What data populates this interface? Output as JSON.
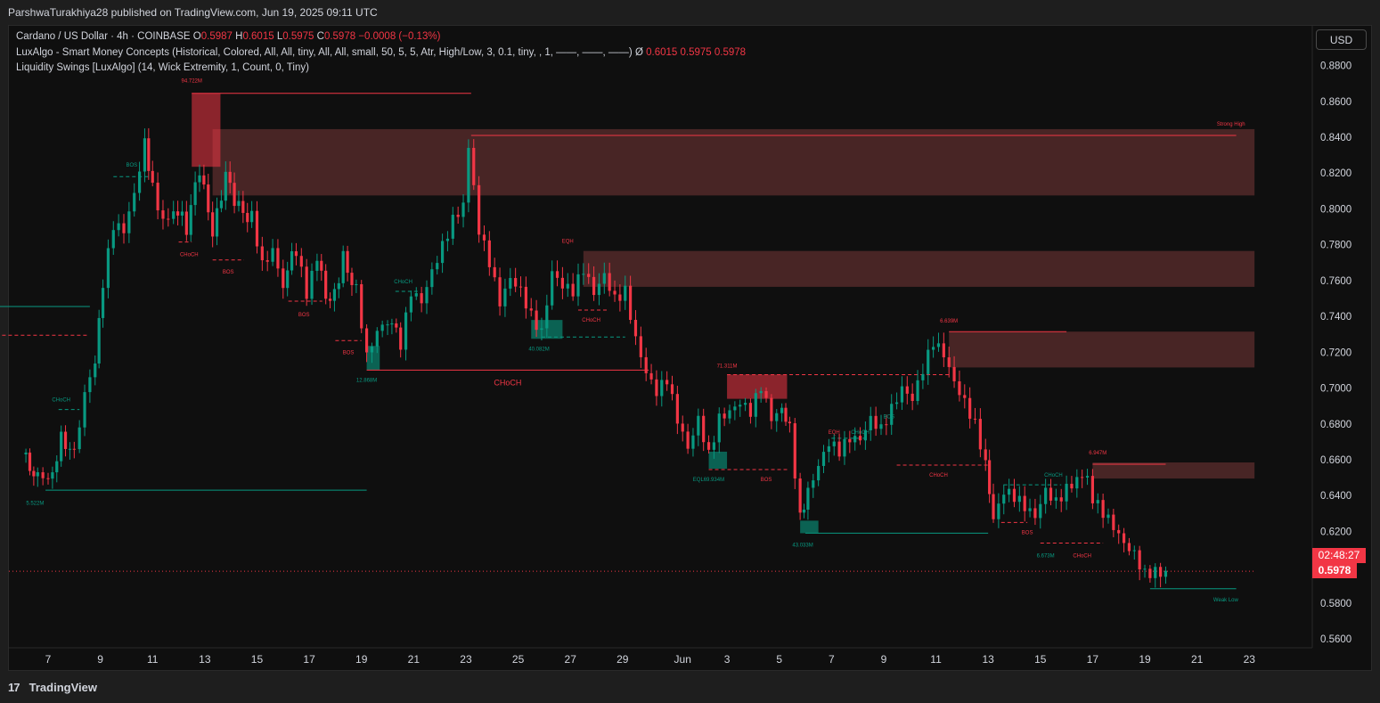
{
  "header": {
    "publisher_line": "ParshwaTurakhiya28 published on TradingView.com, Jun 19, 2025 09:11 UTC"
  },
  "legend": {
    "symbol": "Cardano / US Dollar · 4h · COINBASE",
    "o_label": "O",
    "o_value": "0.5987",
    "h_label": "H",
    "h_value": "0.6015",
    "l_label": "L",
    "l_value": "0.5975",
    "c_label": "C",
    "c_value": "0.5978",
    "change": "−0.0008 (−0.13%)",
    "indicator1": "LuxAlgo - Smart Money Concepts (Historical, Colored, All, All, tiny, All, All, small, 50, 5, 5, Atr, High/Low, 3, 0.1, tiny, , 1, ——, ——, ——)  Ø",
    "indicator1_values": "0.6015  0.5975  0.5978",
    "indicator2": "Liquidity Swings [LuxAlgo] (14, Wick Extremity, 1, Count, 0, Tiny)"
  },
  "currency_button": "USD",
  "price_label": {
    "countdown": "02:48:27",
    "last": "0.5978"
  },
  "footer": {
    "brand": "TradingView",
    "brand_mark": "17"
  },
  "colors": {
    "bull": "#089981",
    "bear": "#f23645",
    "zone": "#5c2e2e"
  },
  "chart_data": {
    "type": "candlestick",
    "title": "Cardano / US Dollar · 4h · COINBASE",
    "ylim": [
      0.55,
      0.895
    ],
    "y_ticks": [
      "0.8800",
      "0.8600",
      "0.8400",
      "0.8200",
      "0.8000",
      "0.7800",
      "0.7600",
      "0.7400",
      "0.7200",
      "0.7000",
      "0.6800",
      "0.6600",
      "0.6400",
      "0.6200",
      "0.6000",
      "0.5800",
      "0.5600"
    ],
    "x_ticks": [
      {
        "label": "7",
        "t": 7
      },
      {
        "label": "9",
        "t": 9
      },
      {
        "label": "11",
        "t": 11
      },
      {
        "label": "13",
        "t": 13
      },
      {
        "label": "15",
        "t": 15
      },
      {
        "label": "17",
        "t": 17
      },
      {
        "label": "19",
        "t": 19
      },
      {
        "label": "21",
        "t": 21
      },
      {
        "label": "23",
        "t": 23
      },
      {
        "label": "25",
        "t": 25
      },
      {
        "label": "27",
        "t": 27
      },
      {
        "label": "29",
        "t": 29
      },
      {
        "label": "Jun",
        "t": 31.3
      },
      {
        "label": "3",
        "t": 33
      },
      {
        "label": "5",
        "t": 35
      },
      {
        "label": "7",
        "t": 37
      },
      {
        "label": "9",
        "t": 39
      },
      {
        "label": "11",
        "t": 41
      },
      {
        "label": "13",
        "t": 43
      },
      {
        "label": "15",
        "t": 45
      },
      {
        "label": "17",
        "t": 47
      },
      {
        "label": "19",
        "t": 49
      },
      {
        "label": "21",
        "t": 51
      },
      {
        "label": "23",
        "t": 53
      }
    ],
    "close_path": [
      [
        6.0,
        0.663
      ],
      [
        6.6,
        0.65
      ],
      [
        7.0,
        0.645
      ],
      [
        7.5,
        0.672
      ],
      [
        8.0,
        0.665
      ],
      [
        8.4,
        0.7
      ],
      [
        8.8,
        0.718
      ],
      [
        9.1,
        0.76
      ],
      [
        9.5,
        0.79
      ],
      [
        9.9,
        0.785
      ],
      [
        10.3,
        0.805
      ],
      [
        10.7,
        0.835
      ],
      [
        11.0,
        0.812
      ],
      [
        11.4,
        0.795
      ],
      [
        11.8,
        0.802
      ],
      [
        12.3,
        0.79
      ],
      [
        12.8,
        0.822
      ],
      [
        13.3,
        0.785
      ],
      [
        13.8,
        0.818
      ],
      [
        14.3,
        0.8
      ],
      [
        14.8,
        0.795
      ],
      [
        15.2,
        0.77
      ],
      [
        15.6,
        0.78
      ],
      [
        16.0,
        0.76
      ],
      [
        16.5,
        0.778
      ],
      [
        16.9,
        0.752
      ],
      [
        17.3,
        0.77
      ],
      [
        17.8,
        0.745
      ],
      [
        18.3,
        0.772
      ],
      [
        18.8,
        0.755
      ],
      [
        19.2,
        0.72
      ],
      [
        19.6,
        0.735
      ],
      [
        20.0,
        0.74
      ],
      [
        20.5,
        0.725
      ],
      [
        20.9,
        0.752
      ],
      [
        21.3,
        0.745
      ],
      [
        21.7,
        0.762
      ],
      [
        22.1,
        0.778
      ],
      [
        22.5,
        0.795
      ],
      [
        22.9,
        0.805
      ],
      [
        23.1,
        0.838
      ],
      [
        23.5,
        0.79
      ],
      [
        23.9,
        0.77
      ],
      [
        24.3,
        0.745
      ],
      [
        24.7,
        0.758
      ],
      [
        25.1,
        0.752
      ],
      [
        25.5,
        0.74
      ],
      [
        25.9,
        0.733
      ],
      [
        26.3,
        0.768
      ],
      [
        26.7,
        0.76
      ],
      [
        27.1,
        0.755
      ],
      [
        27.5,
        0.765
      ],
      [
        27.9,
        0.75
      ],
      [
        28.3,
        0.76
      ],
      [
        28.7,
        0.748
      ],
      [
        29.1,
        0.755
      ],
      [
        29.5,
        0.73
      ],
      [
        29.9,
        0.712
      ],
      [
        30.3,
        0.7
      ],
      [
        30.7,
        0.705
      ],
      [
        31.1,
        0.68
      ],
      [
        31.5,
        0.663
      ],
      [
        31.9,
        0.68
      ],
      [
        32.3,
        0.662
      ],
      [
        32.7,
        0.685
      ],
      [
        33.1,
        0.69
      ],
      [
        33.5,
        0.695
      ],
      [
        33.9,
        0.688
      ],
      [
        34.3,
        0.7
      ],
      [
        34.7,
        0.68
      ],
      [
        35.1,
        0.685
      ],
      [
        35.4,
        0.676
      ],
      [
        35.8,
        0.628
      ],
      [
        36.1,
        0.645
      ],
      [
        36.5,
        0.66
      ],
      [
        36.9,
        0.672
      ],
      [
        37.3,
        0.665
      ],
      [
        37.7,
        0.67
      ],
      [
        38.1,
        0.668
      ],
      [
        38.5,
        0.68
      ],
      [
        38.9,
        0.676
      ],
      [
        39.3,
        0.69
      ],
      [
        39.7,
        0.703
      ],
      [
        40.1,
        0.697
      ],
      [
        40.5,
        0.712
      ],
      [
        40.9,
        0.725
      ],
      [
        41.3,
        0.716
      ],
      [
        41.7,
        0.7
      ],
      [
        42.1,
        0.69
      ],
      [
        42.5,
        0.68
      ],
      [
        42.9,
        0.66
      ],
      [
        43.2,
        0.63
      ],
      [
        43.6,
        0.645
      ],
      [
        44.0,
        0.64
      ],
      [
        44.4,
        0.632
      ],
      [
        44.8,
        0.625
      ],
      [
        45.2,
        0.64
      ],
      [
        45.6,
        0.635
      ],
      [
        46.0,
        0.645
      ],
      [
        46.4,
        0.652
      ],
      [
        46.8,
        0.655
      ],
      [
        47.0,
        0.64
      ],
      [
        47.4,
        0.63
      ],
      [
        47.8,
        0.62
      ],
      [
        48.2,
        0.61
      ],
      [
        48.6,
        0.605
      ],
      [
        49.0,
        0.596
      ],
      [
        49.4,
        0.6
      ],
      [
        49.8,
        0.598
      ]
    ],
    "zones": [
      {
        "kind": "supply",
        "t0": 13.3,
        "t1": 53.2,
        "y0": 0.8445,
        "y1": 0.8075
      },
      {
        "kind": "supply",
        "t0": 27.5,
        "t1": 53.2,
        "y0": 0.7765,
        "y1": 0.7565
      },
      {
        "kind": "supply",
        "t0": 41.5,
        "t1": 53.2,
        "y0": 0.7315,
        "y1": 0.7115
      },
      {
        "kind": "supply",
        "t0": 47.0,
        "t1": 53.2,
        "y0": 0.6585,
        "y1": 0.6495
      },
      {
        "kind": "liquidity_high",
        "t0": 12.5,
        "t1": 13.6,
        "y0": 0.8645,
        "y1": 0.8235
      },
      {
        "kind": "liquidity_high",
        "t0": 33.0,
        "t1": 35.3,
        "y0": 0.7075,
        "y1": 0.694
      },
      {
        "kind": "liquidity_low",
        "t0": 19.2,
        "t1": 19.7,
        "y0": 0.7235,
        "y1": 0.71
      },
      {
        "kind": "liquidity_low",
        "t0": 25.5,
        "t1": 26.7,
        "y0": 0.738,
        "y1": 0.7275
      },
      {
        "kind": "liquidity_low",
        "t0": 32.3,
        "t1": 33.0,
        "y0": 0.6645,
        "y1": 0.655
      },
      {
        "kind": "liquidity_low",
        "t0": 35.8,
        "t1": 36.5,
        "y0": 0.626,
        "y1": 0.619
      }
    ],
    "levels": [
      {
        "t0": 12.5,
        "t1": 23.2,
        "y": 0.8645,
        "color": "bear",
        "style": "solid"
      },
      {
        "t0": 23.2,
        "t1": 52.5,
        "y": 0.841,
        "color": "bear",
        "style": "solid"
      },
      {
        "t0": 41.5,
        "t1": 46.0,
        "y": 0.7315,
        "color": "bear",
        "style": "solid"
      },
      {
        "t0": 47.0,
        "t1": 49.8,
        "y": 0.6575,
        "color": "bear",
        "style": "solid"
      },
      {
        "t0": 19.2,
        "t1": 30.0,
        "y": 0.71,
        "color": "bear",
        "style": "solid"
      },
      {
        "t0": 5.0,
        "t1": 8.6,
        "y": 0.7455,
        "color": "bull",
        "style": "solid"
      },
      {
        "t0": 6.9,
        "t1": 19.2,
        "y": 0.643,
        "color": "bull",
        "style": "solid"
      },
      {
        "t0": 36.0,
        "t1": 43.0,
        "y": 0.619,
        "color": "bull",
        "style": "solid"
      },
      {
        "t0": 49.2,
        "t1": 52.5,
        "y": 0.588,
        "color": "bull",
        "style": "solid"
      },
      {
        "t0": 5.0,
        "t1": 8.5,
        "y": 0.7295,
        "color": "bear",
        "style": "dashed"
      },
      {
        "t0": 33.0,
        "t1": 41.5,
        "y": 0.7075,
        "color": "bear",
        "style": "dashed"
      },
      {
        "t0": 32.3,
        "t1": 35.3,
        "y": 0.6545,
        "color": "bear",
        "style": "dashed"
      },
      {
        "t0": 39.5,
        "t1": 43.0,
        "y": 0.657,
        "color": "bear",
        "style": "dashed"
      },
      {
        "t0": 45.0,
        "t1": 47.4,
        "y": 0.6135,
        "color": "bear",
        "style": "dashed"
      },
      {
        "t0": 9.5,
        "t1": 10.9,
        "y": 0.818,
        "color": "bull",
        "style": "dashed"
      },
      {
        "t0": 7.4,
        "t1": 8.2,
        "y": 0.688,
        "color": "bull",
        "style": "dashed"
      },
      {
        "t0": 20.3,
        "t1": 21.2,
        "y": 0.754,
        "color": "bull",
        "style": "dashed"
      },
      {
        "t0": 25.9,
        "t1": 29.1,
        "y": 0.7285,
        "color": "bull",
        "style": "dashed"
      },
      {
        "t0": 43.6,
        "t1": 45.8,
        "y": 0.646,
        "color": "bull",
        "style": "dashed"
      },
      {
        "t0": 37.0,
        "t1": 38.3,
        "y": 0.672,
        "color": "bull",
        "style": "dashed"
      },
      {
        "t0": 12.0,
        "t1": 12.5,
        "y": 0.7815,
        "color": "bear",
        "style": "dashed"
      },
      {
        "t0": 13.3,
        "t1": 14.5,
        "y": 0.7715,
        "color": "bear",
        "style": "dashed"
      },
      {
        "t0": 16.2,
        "t1": 17.5,
        "y": 0.7485,
        "color": "bear",
        "style": "dashed"
      },
      {
        "t0": 18.0,
        "t1": 19.0,
        "y": 0.7265,
        "color": "bear",
        "style": "dashed"
      },
      {
        "t0": 27.3,
        "t1": 28.4,
        "y": 0.7435,
        "color": "bear",
        "style": "dashed"
      },
      {
        "t0": 43.5,
        "t1": 44.5,
        "y": 0.625,
        "color": "bear",
        "style": "dashed"
      },
      {
        "t0": 5.0,
        "t1": 53.2,
        "y": 0.5978,
        "color": "bear",
        "style": "dotted"
      }
    ],
    "annotations": [
      {
        "text": "94.722M",
        "t": 12.5,
        "y": 0.8705,
        "color": "bear",
        "size": 6
      },
      {
        "text": "Strong High",
        "t": 52.3,
        "y": 0.8465,
        "color": "bear",
        "size": 6
      },
      {
        "text": "BOS",
        "t": 10.2,
        "y": 0.8235,
        "color": "bull",
        "size": 6
      },
      {
        "text": "CHoCH",
        "t": 12.4,
        "y": 0.7735,
        "color": "bear",
        "size": 6
      },
      {
        "text": "BOS",
        "t": 13.9,
        "y": 0.764,
        "color": "bear",
        "size": 6
      },
      {
        "text": "BOS",
        "t": 16.8,
        "y": 0.74,
        "color": "bear",
        "size": 6
      },
      {
        "text": "BOS",
        "t": 18.5,
        "y": 0.719,
        "color": "bear",
        "size": 6
      },
      {
        "text": "CHoCH",
        "t": 20.6,
        "y": 0.7585,
        "color": "bull",
        "size": 6
      },
      {
        "text": "12.868M",
        "t": 19.2,
        "y": 0.7035,
        "color": "bull",
        "size": 6
      },
      {
        "text": "CHoCH",
        "t": 24.6,
        "y": 0.7015,
        "color": "bear",
        "size": 9
      },
      {
        "text": "40.082M",
        "t": 25.8,
        "y": 0.721,
        "color": "bull",
        "size": 6
      },
      {
        "text": "EQH",
        "t": 26.9,
        "y": 0.781,
        "color": "bear",
        "size": 6
      },
      {
        "text": "CHoCH",
        "t": 27.8,
        "y": 0.737,
        "color": "bear",
        "size": 6
      },
      {
        "text": "CHoCH",
        "t": 7.5,
        "y": 0.6925,
        "color": "bull",
        "size": 6
      },
      {
        "text": "5.522M",
        "t": 6.5,
        "y": 0.635,
        "color": "bull",
        "size": 6
      },
      {
        "text": "71.311M",
        "t": 33.0,
        "y": 0.7115,
        "color": "bear",
        "size": 6
      },
      {
        "text": "EQL",
        "t": 31.9,
        "y": 0.648,
        "color": "bull",
        "size": 6
      },
      {
        "text": "69.934M",
        "t": 32.5,
        "y": 0.648,
        "color": "bull",
        "size": 6
      },
      {
        "text": "BOS",
        "t": 34.5,
        "y": 0.648,
        "color": "bear",
        "size": 6
      },
      {
        "text": "43.033M",
        "t": 35.9,
        "y": 0.6115,
        "color": "bull",
        "size": 6
      },
      {
        "text": "EQH",
        "t": 37.1,
        "y": 0.6745,
        "color": "bear",
        "size": 6
      },
      {
        "text": "CHoCH",
        "t": 38.1,
        "y": 0.6745,
        "color": "bull",
        "size": 6
      },
      {
        "text": "BOS",
        "t": 39.2,
        "y": 0.683,
        "color": "bull",
        "size": 6
      },
      {
        "text": "6.639M",
        "t": 41.5,
        "y": 0.7365,
        "color": "bear",
        "size": 6
      },
      {
        "text": "CHoCH",
        "t": 41.1,
        "y": 0.6505,
        "color": "bear",
        "size": 6
      },
      {
        "text": "CHoCH",
        "t": 45.5,
        "y": 0.6505,
        "color": "bull",
        "size": 6
      },
      {
        "text": "BOS",
        "t": 44.5,
        "y": 0.6185,
        "color": "bear",
        "size": 6
      },
      {
        "text": "6.673M",
        "t": 45.2,
        "y": 0.6055,
        "color": "bull",
        "size": 6
      },
      {
        "text": "CHoCH",
        "t": 46.6,
        "y": 0.6055,
        "color": "bear",
        "size": 6
      },
      {
        "text": "6.947M",
        "t": 47.2,
        "y": 0.663,
        "color": "bear",
        "size": 6
      },
      {
        "text": "Weak Low",
        "t": 52.1,
        "y": 0.581,
        "color": "bull",
        "size": 6
      }
    ]
  }
}
